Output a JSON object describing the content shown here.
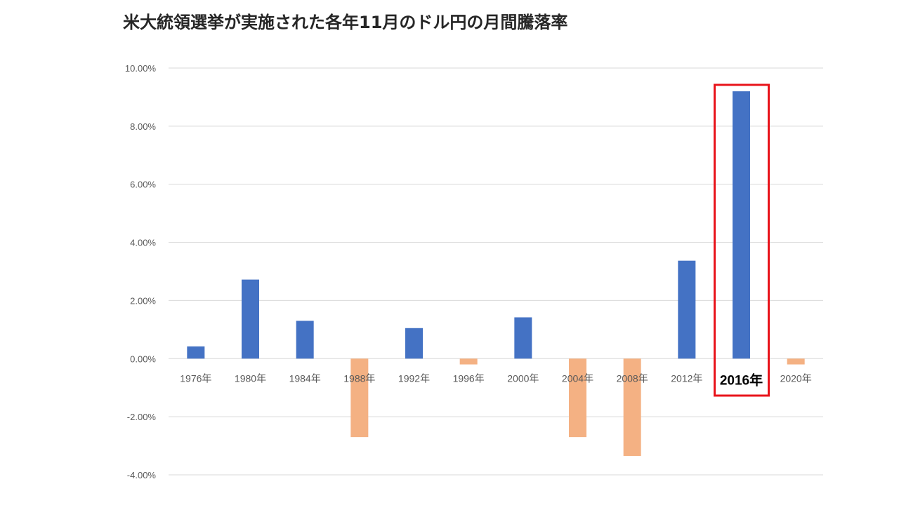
{
  "chart_data": {
    "type": "bar",
    "title": "米大統領選挙が実施された各年11月のドル円の月間騰落率",
    "xlabel": "",
    "ylabel": "",
    "categories": [
      "1976年",
      "1980年",
      "1984年",
      "1988年",
      "1992年",
      "1996年",
      "2000年",
      "2004年",
      "2008年",
      "2012年",
      "2016年",
      "2020年"
    ],
    "values": [
      0.42,
      2.72,
      1.3,
      -2.7,
      1.05,
      -0.2,
      1.42,
      -2.7,
      -3.35,
      3.37,
      9.2,
      -0.2
    ],
    "unit": "%",
    "ylim": [
      -4,
      10
    ],
    "yticks": [
      10,
      8,
      6,
      4,
      2,
      0,
      -2,
      -4
    ],
    "ytick_labels": [
      "10.00%",
      "8.00%",
      "6.00%",
      "4.00%",
      "2.00%",
      "0.00%",
      "-2.00%",
      "-4.00%"
    ],
    "grid": true,
    "colors": {
      "positive": "#4472C4",
      "negative": "#F4B183",
      "highlight_box": "#E8141B",
      "gridline": "#D9D9D9",
      "tick_label": "#595959",
      "highlight_label": "#000000"
    },
    "highlight": {
      "category": "2016年"
    }
  }
}
